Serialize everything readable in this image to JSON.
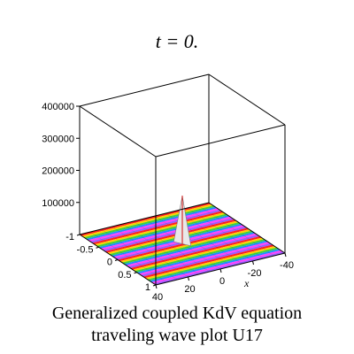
{
  "figure": {
    "title": "t = 0.",
    "caption_line1": "Generalized coupled KdV equation",
    "caption_line2": "traveling wave plot U17"
  },
  "chart_data": {
    "type": "surface",
    "xlabel": "x",
    "x_ticks": [
      "40",
      "20",
      "0",
      "-20",
      "-40"
    ],
    "y_ticks": [
      "-1",
      "-0.5",
      "0",
      "0.5",
      "1"
    ],
    "z_ticks": [
      "100000",
      "200000",
      "300000",
      "400000"
    ],
    "x_range": [
      -40,
      40
    ],
    "y_range": [
      -1,
      1
    ],
    "z_range": [
      0,
      400000
    ],
    "surface_band_colors": [
      "#ff2020",
      "#ffd000",
      "#3cd23c",
      "#1e8cff",
      "#ff40ff",
      "#9b59ff"
    ],
    "spike": {
      "x": 0,
      "y": 0,
      "z": 150000
    }
  }
}
